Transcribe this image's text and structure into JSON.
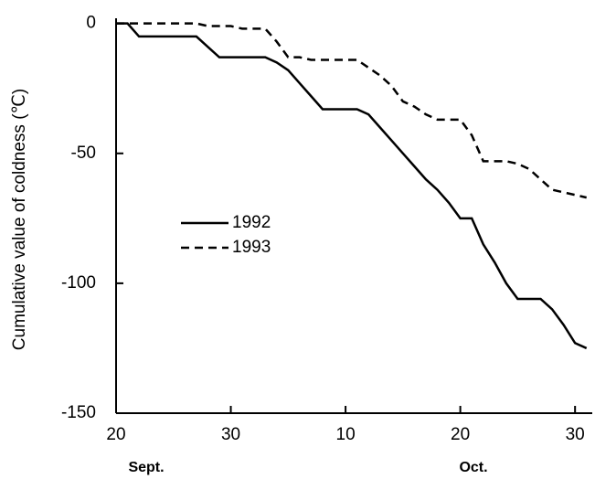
{
  "chart_data": {
    "type": "line",
    "y_label": "Cumulative value of coldness (℃)",
    "month_labels": [
      "Sept.",
      "Oct."
    ],
    "x": [
      0,
      1,
      2,
      3,
      4,
      5,
      6,
      7,
      8,
      9,
      10,
      11,
      12,
      13,
      14,
      15,
      16,
      17,
      18,
      19,
      20,
      21,
      22,
      23,
      24,
      25,
      26,
      27,
      28,
      29,
      30,
      31,
      32,
      33,
      34,
      35,
      36,
      37,
      38,
      39,
      40,
      41
    ],
    "series": [
      {
        "name": "1992",
        "color": "#000000",
        "dash": false,
        "values": [
          0,
          0,
          -5,
          -5,
          -5,
          -5,
          -5,
          -5,
          -9,
          -13,
          -13,
          -13,
          -13,
          -13,
          -15,
          -18,
          -23,
          -28,
          -33,
          -33,
          -33,
          -33,
          -35,
          -40,
          -45,
          -50,
          -55,
          -60,
          -64,
          -69,
          -75,
          -75,
          -85,
          -92,
          -100,
          -106,
          -106,
          -106,
          -110,
          -116,
          -123,
          -125
        ]
      },
      {
        "name": "1993",
        "color": "#000000",
        "dash": true,
        "values": [
          0,
          0,
          0,
          0,
          0,
          0,
          0,
          0,
          -1,
          -1,
          -1,
          -2,
          -2,
          -2,
          -7,
          -13,
          -13,
          -14,
          -14,
          -14,
          -14,
          -14,
          -17,
          -20,
          -24,
          -30,
          -32,
          -35,
          -37,
          -37,
          -37,
          -43,
          -53,
          -53,
          -53,
          -54,
          -56,
          -60,
          -64,
          -65,
          -66,
          -67
        ]
      }
    ],
    "xlim": [
      0,
      41.5
    ],
    "xticks": [
      {
        "value": 0,
        "label": "20"
      },
      {
        "value": 10,
        "label": "30"
      },
      {
        "value": 20,
        "label": "10"
      },
      {
        "value": 30,
        "label": "20"
      },
      {
        "value": 40,
        "label": "30"
      }
    ],
    "ylim": [
      -150,
      2
    ],
    "yticks": [
      0,
      -50,
      -100,
      -150
    ],
    "legend": "center-left"
  }
}
